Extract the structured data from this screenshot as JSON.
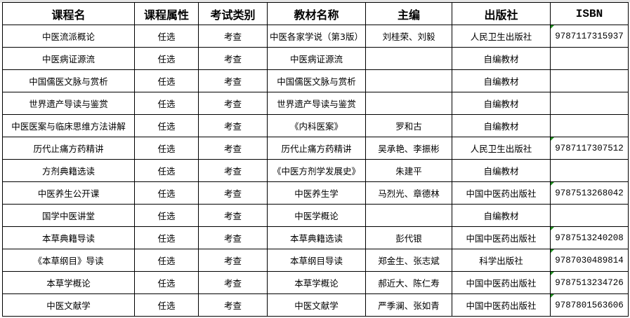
{
  "headers": [
    "课程名",
    "课程属性",
    "考试类别",
    "教材名称",
    "主编",
    "出版社",
    "ISBN"
  ],
  "rows": [
    {
      "course": "中医流派概论",
      "attr": "任选",
      "exam": "考查",
      "book": "中医各家学说（第3版）",
      "editor": "刘桂荣、刘毅",
      "publisher": "人民卫生出版社",
      "isbn": "9787117315937"
    },
    {
      "course": "中医病证源流",
      "attr": "任选",
      "exam": "考查",
      "book": "中医病证源流",
      "editor": "",
      "publisher": "自编教材",
      "isbn": ""
    },
    {
      "course": "中国儒医文脉与赏析",
      "attr": "任选",
      "exam": "考查",
      "book": "中国儒医文脉与赏析",
      "editor": "",
      "publisher": "自编教材",
      "isbn": ""
    },
    {
      "course": "世界遗产导读与鉴赏",
      "attr": "任选",
      "exam": "考查",
      "book": "世界遗产导读与鉴赏",
      "editor": "",
      "publisher": "自编教材",
      "isbn": ""
    },
    {
      "course": "中医医案与临床思维方法讲解",
      "attr": "任选",
      "exam": "考查",
      "book": "《内科医案》",
      "editor": "罗和古",
      "publisher": "自编教材",
      "isbn": ""
    },
    {
      "course": "历代止痛方药精讲",
      "attr": "任选",
      "exam": "考查",
      "book": "历代止痛方药精讲",
      "editor": "吴承艳、李振彬",
      "publisher": "人民卫生出版社",
      "isbn": "9787117307512"
    },
    {
      "course": "方剂典籍选读",
      "attr": "任选",
      "exam": "考查",
      "book": "《中医方剂学发展史》",
      "editor": "朱建平",
      "publisher": "自编教材",
      "isbn": ""
    },
    {
      "course": "中医养生公开课",
      "attr": "任选",
      "exam": "考查",
      "book": "中医养生学",
      "editor": "马烈光、章德林",
      "publisher": "中国中医药出版社",
      "isbn": "9787513268042"
    },
    {
      "course": "国学中医讲堂",
      "attr": "任选",
      "exam": "考查",
      "book": "中医学概论",
      "editor": "",
      "publisher": "自编教材",
      "isbn": ""
    },
    {
      "course": "本草典籍导读",
      "attr": "任选",
      "exam": "考查",
      "book": "本草典籍选读",
      "editor": "彭代银",
      "publisher": "中国中医药出版社",
      "isbn": "9787513240208"
    },
    {
      "course": "《本草纲目》导读",
      "attr": "任选",
      "exam": "考查",
      "book": "本草纲目导读",
      "editor": "郑金生、张志斌",
      "publisher": "科学出版社",
      "isbn": "9787030489814"
    },
    {
      "course": "本草学概论",
      "attr": "任选",
      "exam": "考查",
      "book": "本草学概论",
      "editor": "郝近大、陈仁寿",
      "publisher": "中国中医药出版社",
      "isbn": "9787513234726"
    },
    {
      "course": "中医文献学",
      "attr": "任选",
      "exam": "考查",
      "book": "中医文献学",
      "editor": "严季澜、张如青",
      "publisher": "中国中医药出版社",
      "isbn": "9787801563606"
    }
  ],
  "colors": {
    "grid": "#000000",
    "comment_flag": "#1e8e1e"
  }
}
